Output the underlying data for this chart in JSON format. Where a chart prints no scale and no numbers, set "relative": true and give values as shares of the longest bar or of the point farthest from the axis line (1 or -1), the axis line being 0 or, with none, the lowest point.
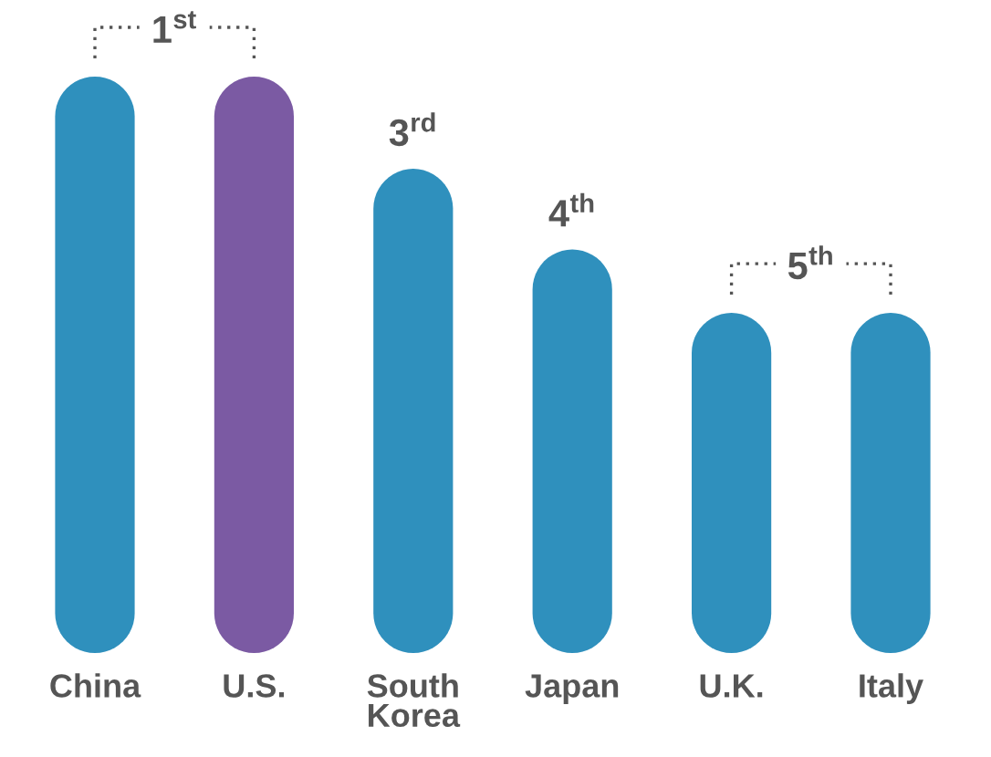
{
  "chart_data": {
    "type": "bar",
    "relative": true,
    "categories": [
      "China",
      "U.S.",
      "South\nKorea",
      "Japan",
      "U.K.",
      "Italy"
    ],
    "values": [
      1,
      1,
      0.84,
      0.7,
      0.59,
      0.59
    ],
    "colors": [
      "#2f90bd",
      "#7b5aa3",
      "#2f90bd",
      "#2f90bd",
      "#2f90bd",
      "#2f90bd"
    ],
    "annotations": [
      "1$^{st}$",
      "3$^{rd}$",
      "4$^{th}$",
      "5$^{th}$"
    ]
  }
}
